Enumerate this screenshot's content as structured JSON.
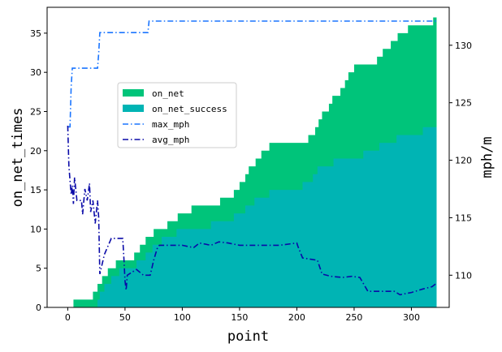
{
  "chart_data": {
    "type": "area",
    "xlabel": "point",
    "ylabel_left": "on_net_times",
    "ylabel_right": "mph/m",
    "xlim": [
      -18,
      333
    ],
    "ylim_left": [
      0,
      38.3
    ],
    "ylim_right": [
      107.2,
      133.3
    ],
    "xticks": [
      0,
      50,
      100,
      150,
      200,
      250,
      300
    ],
    "yticks_left": [
      0,
      5,
      10,
      15,
      20,
      25,
      30,
      35
    ],
    "yticks_right": [
      110,
      115,
      120,
      125,
      130
    ],
    "grid": false,
    "legend_position": "upper-left-center",
    "series": [
      {
        "name": "on_net",
        "kind": "step-area",
        "axis": "left",
        "color": "#00c47a",
        "points": [
          [
            5,
            1
          ],
          [
            22,
            2
          ],
          [
            26,
            3
          ],
          [
            30,
            4
          ],
          [
            35,
            5
          ],
          [
            42,
            6
          ],
          [
            58,
            7
          ],
          [
            63,
            8
          ],
          [
            68,
            9
          ],
          [
            75,
            10
          ],
          [
            87,
            11
          ],
          [
            96,
            12
          ],
          [
            108,
            13
          ],
          [
            127,
            13
          ],
          [
            133,
            14
          ],
          [
            145,
            15
          ],
          [
            150,
            16
          ],
          [
            155,
            17
          ],
          [
            158,
            18
          ],
          [
            164,
            19
          ],
          [
            169,
            20
          ],
          [
            176,
            21
          ],
          [
            205,
            21
          ],
          [
            210,
            22
          ],
          [
            216,
            23
          ],
          [
            219,
            24
          ],
          [
            222,
            25
          ],
          [
            228,
            26
          ],
          [
            231,
            27
          ],
          [
            238,
            28
          ],
          [
            242,
            29
          ],
          [
            245,
            30
          ],
          [
            250,
            31
          ],
          [
            270,
            32
          ],
          [
            275,
            33
          ],
          [
            282,
            34
          ],
          [
            288,
            35
          ],
          [
            297,
            36
          ],
          [
            313,
            36
          ],
          [
            319,
            37
          ],
          [
            322,
            37
          ]
        ]
      },
      {
        "name": "on_net_success",
        "kind": "step-area",
        "axis": "left",
        "color": "#00b4b4",
        "points": [
          [
            5,
            0
          ],
          [
            26,
            1
          ],
          [
            28,
            2
          ],
          [
            32,
            3
          ],
          [
            38,
            4
          ],
          [
            45,
            5
          ],
          [
            52,
            5
          ],
          [
            60,
            6
          ],
          [
            68,
            7
          ],
          [
            74,
            8
          ],
          [
            82,
            9
          ],
          [
            95,
            10
          ],
          [
            118,
            10
          ],
          [
            125,
            11
          ],
          [
            145,
            12
          ],
          [
            155,
            13
          ],
          [
            163,
            14
          ],
          [
            176,
            15
          ],
          [
            198,
            15
          ],
          [
            205,
            16
          ],
          [
            214,
            17
          ],
          [
            218,
            18
          ],
          [
            232,
            19
          ],
          [
            258,
            20
          ],
          [
            272,
            21
          ],
          [
            287,
            22
          ],
          [
            300,
            22
          ],
          [
            310,
            23
          ],
          [
            322,
            23
          ]
        ]
      },
      {
        "name": "max_mph",
        "kind": "line",
        "axis": "right",
        "color": "#1a75ff",
        "dash": "dashdot",
        "points": [
          [
            0,
            122.9
          ],
          [
            2,
            122.9
          ],
          [
            3,
            126.4
          ],
          [
            4,
            128.0
          ],
          [
            26,
            128.0
          ],
          [
            27,
            129.3
          ],
          [
            28,
            131.1
          ],
          [
            70,
            131.1
          ],
          [
            71,
            132.1
          ],
          [
            322,
            132.1
          ]
        ]
      },
      {
        "name": "avg_mph",
        "kind": "line",
        "axis": "right",
        "color": "#0a0aa8",
        "dash": "dashdot",
        "points": [
          [
            0,
            123.0
          ],
          [
            1,
            119.5
          ],
          [
            3,
            117.0
          ],
          [
            4,
            117.8
          ],
          [
            5,
            116.2
          ],
          [
            6,
            118.5
          ],
          [
            8,
            116.5
          ],
          [
            12,
            116.5
          ],
          [
            13,
            115.3
          ],
          [
            15,
            117.5
          ],
          [
            17,
            116.5
          ],
          [
            19,
            118.0
          ],
          [
            20,
            115.5
          ],
          [
            22,
            116.5
          ],
          [
            24,
            114.5
          ],
          [
            26,
            116.5
          ],
          [
            27,
            115.0
          ],
          [
            28,
            110.1
          ],
          [
            32,
            111.8
          ],
          [
            35,
            112.5
          ],
          [
            38,
            113.2
          ],
          [
            48,
            113.2
          ],
          [
            49,
            111.5
          ],
          [
            50,
            109.5
          ],
          [
            51,
            108.7
          ],
          [
            52,
            110.0
          ],
          [
            60,
            110.5
          ],
          [
            66,
            110.0
          ],
          [
            72,
            110.0
          ],
          [
            75,
            111.3
          ],
          [
            78,
            112.3
          ],
          [
            80,
            112.6
          ],
          [
            100,
            112.6
          ],
          [
            105,
            112.5
          ],
          [
            110,
            112.4
          ],
          [
            115,
            112.8
          ],
          [
            125,
            112.6
          ],
          [
            132,
            112.9
          ],
          [
            140,
            112.8
          ],
          [
            150,
            112.6
          ],
          [
            155,
            112.6
          ],
          [
            170,
            112.6
          ],
          [
            185,
            112.6
          ],
          [
            200,
            112.8
          ],
          [
            201,
            112.5
          ],
          [
            205,
            111.5
          ],
          [
            218,
            111.3
          ],
          [
            222,
            110.1
          ],
          [
            230,
            109.9
          ],
          [
            240,
            109.8
          ],
          [
            248,
            109.9
          ],
          [
            255,
            109.8
          ],
          [
            262,
            108.6
          ],
          [
            285,
            108.6
          ],
          [
            290,
            108.3
          ],
          [
            300,
            108.5
          ],
          [
            310,
            108.8
          ],
          [
            318,
            109.0
          ],
          [
            322,
            109.3
          ]
        ]
      }
    ]
  }
}
